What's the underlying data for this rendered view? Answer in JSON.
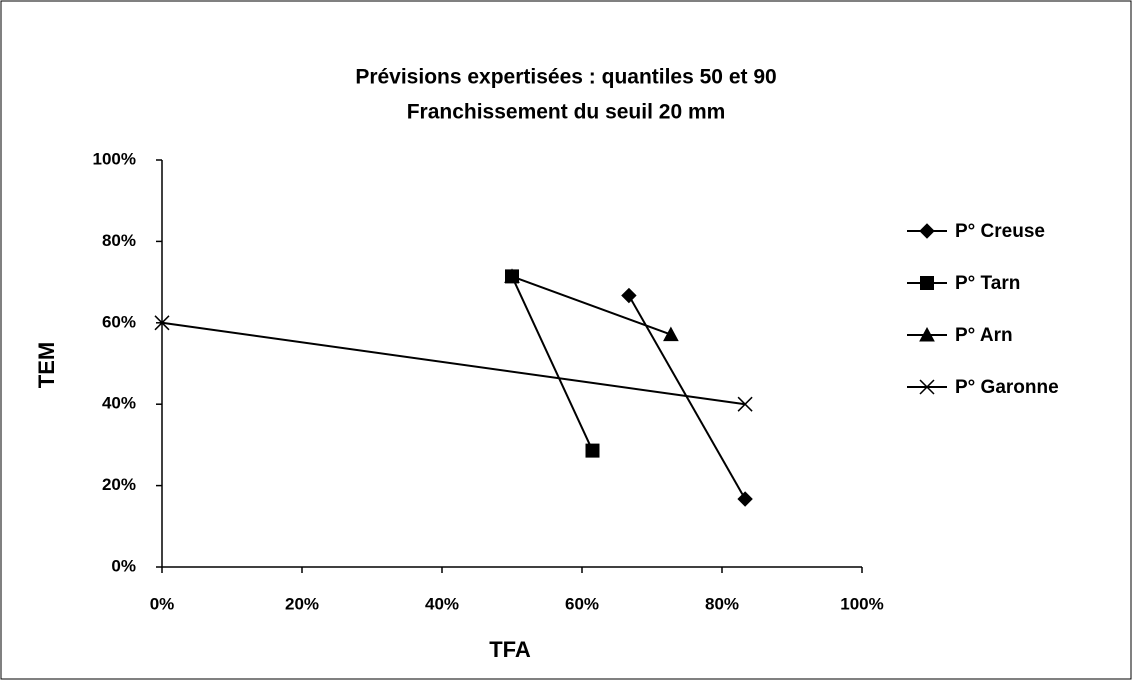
{
  "chart_data": {
    "type": "scatter",
    "title": [
      "Prévisions expertisées : quantiles 50 et 90",
      "Franchissement du seuil 20 mm"
    ],
    "x_label": "TFA",
    "y_label": "TEM",
    "xlim": [
      0,
      100
    ],
    "ylim": [
      0,
      100
    ],
    "xticks": [
      {
        "value": 0,
        "label": "0%"
      },
      {
        "value": 20,
        "label": "20%"
      },
      {
        "value": 40,
        "label": "40%"
      },
      {
        "value": 60,
        "label": "60%"
      },
      {
        "value": 80,
        "label": "80%"
      },
      {
        "value": 100,
        "label": "100%"
      }
    ],
    "yticks": [
      {
        "value": 0,
        "label": "0%"
      },
      {
        "value": 20,
        "label": "20%"
      },
      {
        "value": 40,
        "label": "40%"
      },
      {
        "value": 60,
        "label": "60%"
      },
      {
        "value": 80,
        "label": "80%"
      },
      {
        "value": 100,
        "label": "100%"
      }
    ],
    "legend": "right",
    "series": [
      {
        "name": "P° Creuse",
        "color": "#000000",
        "marker": "diamond",
        "x": [
          66.7,
          83.3
        ],
        "values": [
          66.7,
          16.7
        ]
      },
      {
        "name": "P° Tarn",
        "color": "#000000",
        "marker": "square",
        "x": [
          50,
          61.5
        ],
        "values": [
          71.4,
          28.6
        ]
      },
      {
        "name": "P° Arn",
        "color": "#000000",
        "marker": "triangle",
        "x": [
          50,
          72.7
        ],
        "values": [
          71.4,
          57.1
        ]
      },
      {
        "name": "P° Garonne",
        "color": "#000000",
        "marker": "x",
        "x": [
          0,
          83.3
        ],
        "values": [
          60,
          40
        ]
      }
    ]
  }
}
